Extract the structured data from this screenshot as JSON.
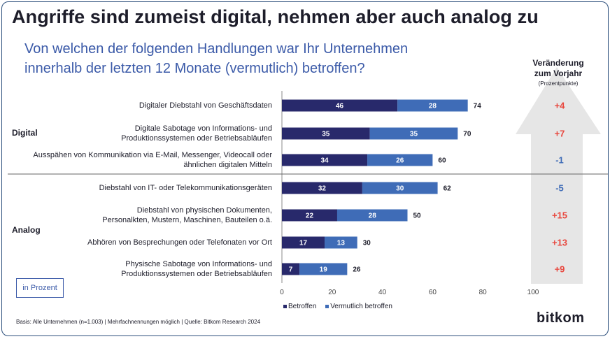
{
  "header": {
    "title": "Angriffe sind zumeist digital, nehmen aber auch analog zu",
    "subtitle_line1": "Von welchen der folgenden Handlungen war Ihr Unternehmen",
    "subtitle_line2": "innerhalb der letzten 12 Monate (vermutlich) betroffen?"
  },
  "change_column": {
    "title_line1": "Veränderung",
    "title_line2": "zum Vorjahr",
    "unit": "(Prozentpunkte)"
  },
  "groups": {
    "digital": "Digital",
    "analog": "Analog"
  },
  "unit_box": "in Prozent",
  "footer": "Basis: Alle Unternehmen (n=1.003) | Mehrfachnennungen möglich | Quelle: Bitkom Research 2024",
  "brand": "bitkom",
  "colors": {
    "betroffen": "#28296b",
    "vermutlich": "#3f6cb7",
    "positive_change": "#e8483f",
    "negative_change": "#3f6cb7",
    "arrow": "#e6e6e6"
  },
  "chart_data": {
    "type": "bar",
    "orientation": "horizontal",
    "stacked": true,
    "categories": [
      [
        "Digitaler Diebstahl von Geschäftsdaten"
      ],
      [
        "Digitale Sabotage von Informations- und",
        "Produktionssystemen oder Betriebsabläufen"
      ],
      [
        "Ausspähen von Kommunikation via E-Mail, Messenger, Videocall oder",
        "ähnlichen digitalen Mitteln"
      ],
      [
        "Diebstahl von IT- oder Telekommunikationsgeräten"
      ],
      [
        "Diebstahl von physischen Dokumenten,",
        "Personalkten, Mustern, Maschinen, Bauteilen o.ä."
      ],
      [
        "Abhören von Besprechungen oder Telefonaten vor Ort"
      ],
      [
        "Physische Sabotage von Informations- und",
        "Produktionssystemen oder Betriebsabläufen"
      ]
    ],
    "group_of_category": [
      "Digital",
      "Digital",
      "Digital",
      "Analog",
      "Analog",
      "Analog",
      "Analog"
    ],
    "series": [
      {
        "name": "Betroffen",
        "values": [
          46,
          35,
          34,
          32,
          22,
          17,
          7
        ]
      },
      {
        "name": "Vermutlich betroffen",
        "values": [
          28,
          35,
          26,
          30,
          28,
          13,
          19
        ]
      }
    ],
    "totals": [
      74,
      70,
      60,
      62,
      50,
      30,
      26
    ],
    "change_vs_prior_year": [
      "+4",
      "+7",
      "-1",
      "-5",
      "+15",
      "+13",
      "+9"
    ],
    "xlim": [
      0,
      100
    ],
    "xticks": [
      0,
      20,
      40,
      60,
      80,
      100
    ],
    "legend_position": "bottom"
  }
}
